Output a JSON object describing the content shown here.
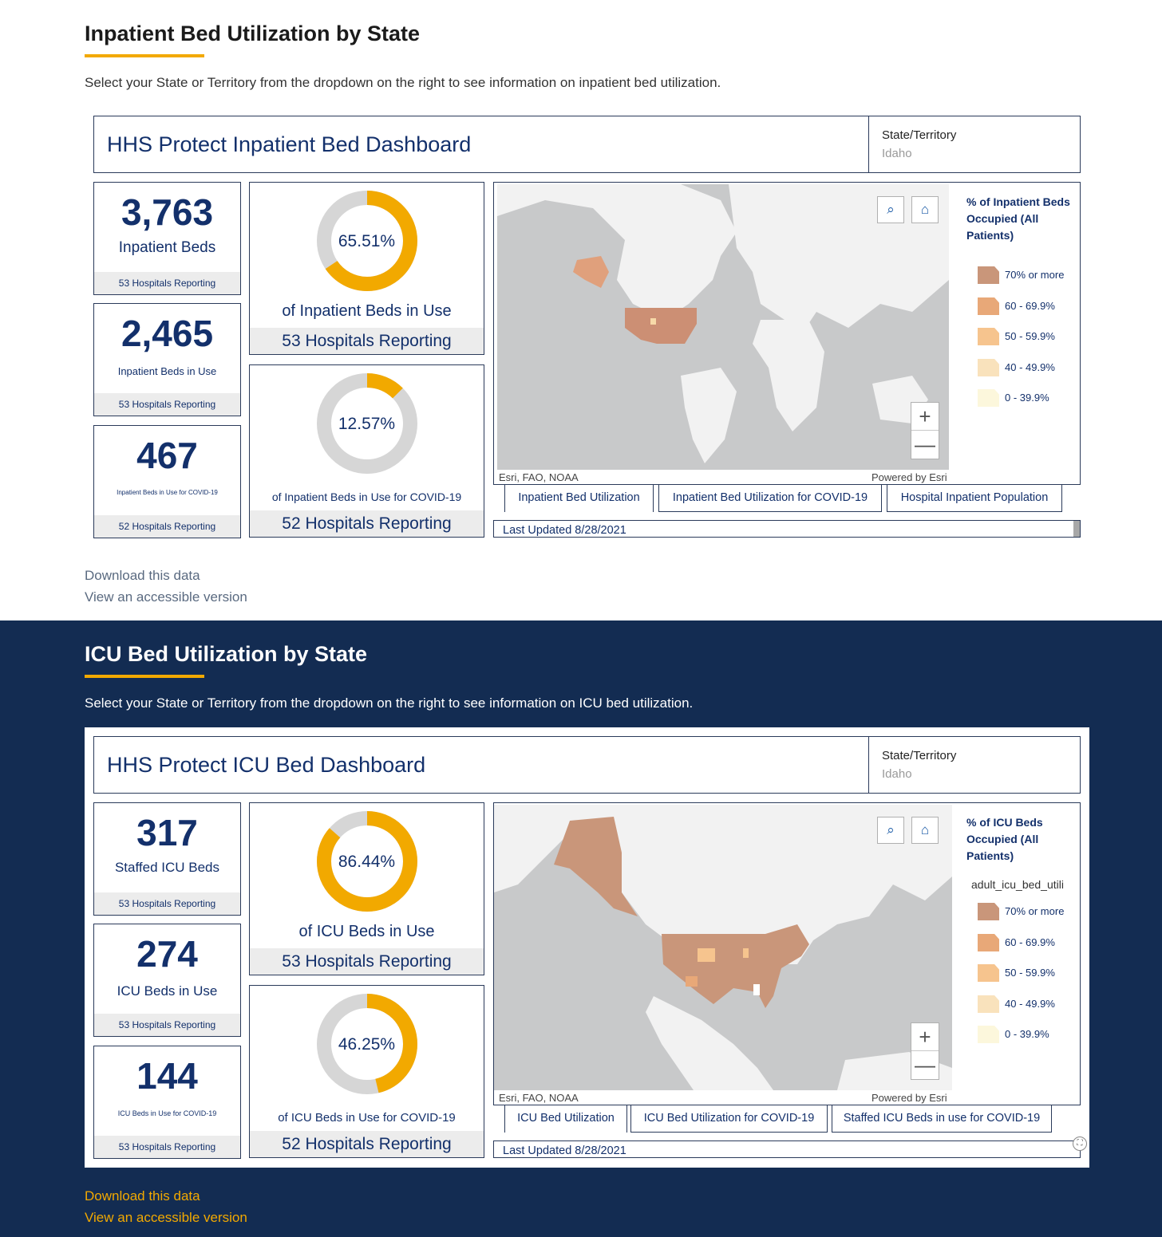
{
  "inpatient": {
    "title": "Inpatient Bed Utilization by State",
    "intro": "Select your State or Territory from the dropdown on the right to see information on inpatient bed utilization.",
    "dashboard_title": "HHS Protect Inpatient Bed Dashboard",
    "state_label": "State/Territory",
    "state_value": "Idaho",
    "stats": [
      {
        "value": "3,763",
        "label": "Inpatient Beds",
        "footer": "53 Hospitals Reporting"
      },
      {
        "value": "2,465",
        "label": "Inpatient Beds in Use",
        "footer": "53 Hospitals Reporting"
      },
      {
        "value": "467",
        "label": "Inpatient Beds in Use for COVID-19",
        "footer": "52 Hospitals Reporting"
      }
    ],
    "donuts": [
      {
        "percent": "65.51%",
        "fraction": 0.6551,
        "label": "of Inpatient Beds in Use",
        "footer": "53 Hospitals Reporting"
      },
      {
        "percent": "12.57%",
        "fraction": 0.1257,
        "label": "of Inpatient Beds in Use for COVID-19",
        "footer": "52 Hospitals Reporting"
      }
    ],
    "legend_title": "% of Inpatient Beds Occupied (All Patients)",
    "legend_field": "",
    "tabs": [
      "Inpatient Bed Utilization",
      "Inpatient Bed Utilization for COVID-19",
      "Hospital Inpatient Population"
    ],
    "last_updated": "Last Updated 8/28/2021",
    "download_link": "Download this data",
    "accessible_link": "View an accessible version"
  },
  "icu": {
    "title": "ICU Bed Utilization by State",
    "intro": "Select your State or Territory from the dropdown on the right to see information on ICU bed utilization.",
    "dashboard_title": "HHS Protect ICU Bed Dashboard",
    "state_label": "State/Territory",
    "state_value": "Idaho",
    "stats": [
      {
        "value": "317",
        "label": "Staffed ICU Beds",
        "footer": "53 Hospitals Reporting"
      },
      {
        "value": "274",
        "label": "ICU Beds in Use",
        "footer": "53 Hospitals Reporting"
      },
      {
        "value": "144",
        "label": "ICU Beds in Use for COVID-19",
        "footer": "53 Hospitals Reporting"
      }
    ],
    "donuts": [
      {
        "percent": "86.44%",
        "fraction": 0.8644,
        "label": "of ICU Beds in Use",
        "footer": "53 Hospitals Reporting"
      },
      {
        "percent": "46.25%",
        "fraction": 0.4625,
        "label": "of ICU Beds in Use for COVID-19",
        "footer": "52 Hospitals Reporting"
      }
    ],
    "legend_title": "% of ICU Beds Occupied (All Patients)",
    "legend_field": "adult_icu_bed_utili",
    "tabs": [
      "ICU Bed Utilization",
      "ICU Bed Utilization for COVID-19",
      "Staffed ICU Beds in use for COVID-19"
    ],
    "last_updated": "Last Updated 8/28/2021",
    "download_link": "Download this data",
    "accessible_link": "View an accessible version"
  },
  "map": {
    "credit_left": "Esri, FAO, NOAA",
    "credit_right": "Powered by Esri",
    "zoom_in": "+",
    "zoom_out": "—"
  },
  "legend": [
    {
      "label": "70% or more",
      "color": "#c9967a"
    },
    {
      "label": "60 - 69.9%",
      "color": "#e8a878"
    },
    {
      "label": "50 - 59.9%",
      "color": "#f6c48e"
    },
    {
      "label": "40 - 49.9%",
      "color": "#f9e2bc"
    },
    {
      "label": "0 - 39.9%",
      "color": "#fcf7dc"
    }
  ],
  "colors": {
    "accent": "#f2a900",
    "navy": "#13306b",
    "dark_bg": "#132c52",
    "donut_track": "#d6d6d6"
  }
}
